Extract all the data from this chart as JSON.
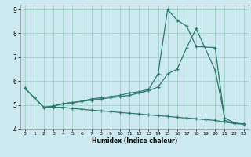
{
  "xlabel": "Humidex (Indice chaleur)",
  "bg_color": "#cce8f0",
  "grid_color": "#99ccbb",
  "line_color": "#2d7a6e",
  "xlim": [
    -0.5,
    23.5
  ],
  "ylim": [
    4.0,
    9.2
  ],
  "xticks": [
    0,
    1,
    2,
    3,
    4,
    5,
    6,
    7,
    8,
    9,
    10,
    11,
    12,
    13,
    14,
    15,
    16,
    17,
    18,
    19,
    20,
    21,
    22,
    23
  ],
  "yticks": [
    4,
    5,
    6,
    7,
    8,
    9
  ],
  "line1_x": [
    0,
    1,
    2,
    3,
    4,
    5,
    6,
    7,
    8,
    9,
    10,
    11,
    12,
    13,
    14,
    15,
    16,
    17,
    18,
    20,
    21,
    22,
    23
  ],
  "line1_y": [
    5.7,
    5.3,
    4.9,
    4.95,
    5.05,
    5.1,
    5.15,
    5.2,
    5.25,
    5.3,
    5.35,
    5.4,
    5.5,
    5.6,
    5.75,
    6.3,
    6.5,
    7.4,
    8.2,
    6.45,
    4.45,
    4.25,
    4.2
  ],
  "line2_x": [
    1,
    2,
    3,
    4,
    5,
    6,
    7,
    8,
    9,
    10,
    11,
    12,
    13,
    14,
    15,
    16,
    17,
    18,
    20,
    21,
    22,
    23
  ],
  "line2_y": [
    5.3,
    4.9,
    4.95,
    5.05,
    5.1,
    5.15,
    5.25,
    5.3,
    5.35,
    5.4,
    5.5,
    5.55,
    5.65,
    6.3,
    9.0,
    8.55,
    8.3,
    7.45,
    7.4,
    4.35,
    4.22,
    4.2
  ],
  "line3_x": [
    0,
    1,
    2,
    3,
    4,
    5,
    6,
    7,
    8,
    9,
    10,
    11,
    12,
    13,
    14,
    15,
    16,
    17,
    18,
    19,
    20,
    21,
    22,
    23
  ],
  "line3_y": [
    5.7,
    5.3,
    4.9,
    4.9,
    4.9,
    4.85,
    4.82,
    4.78,
    4.75,
    4.72,
    4.68,
    4.65,
    4.62,
    4.58,
    4.55,
    4.52,
    4.48,
    4.45,
    4.42,
    4.38,
    4.35,
    4.28,
    4.22,
    4.2
  ]
}
